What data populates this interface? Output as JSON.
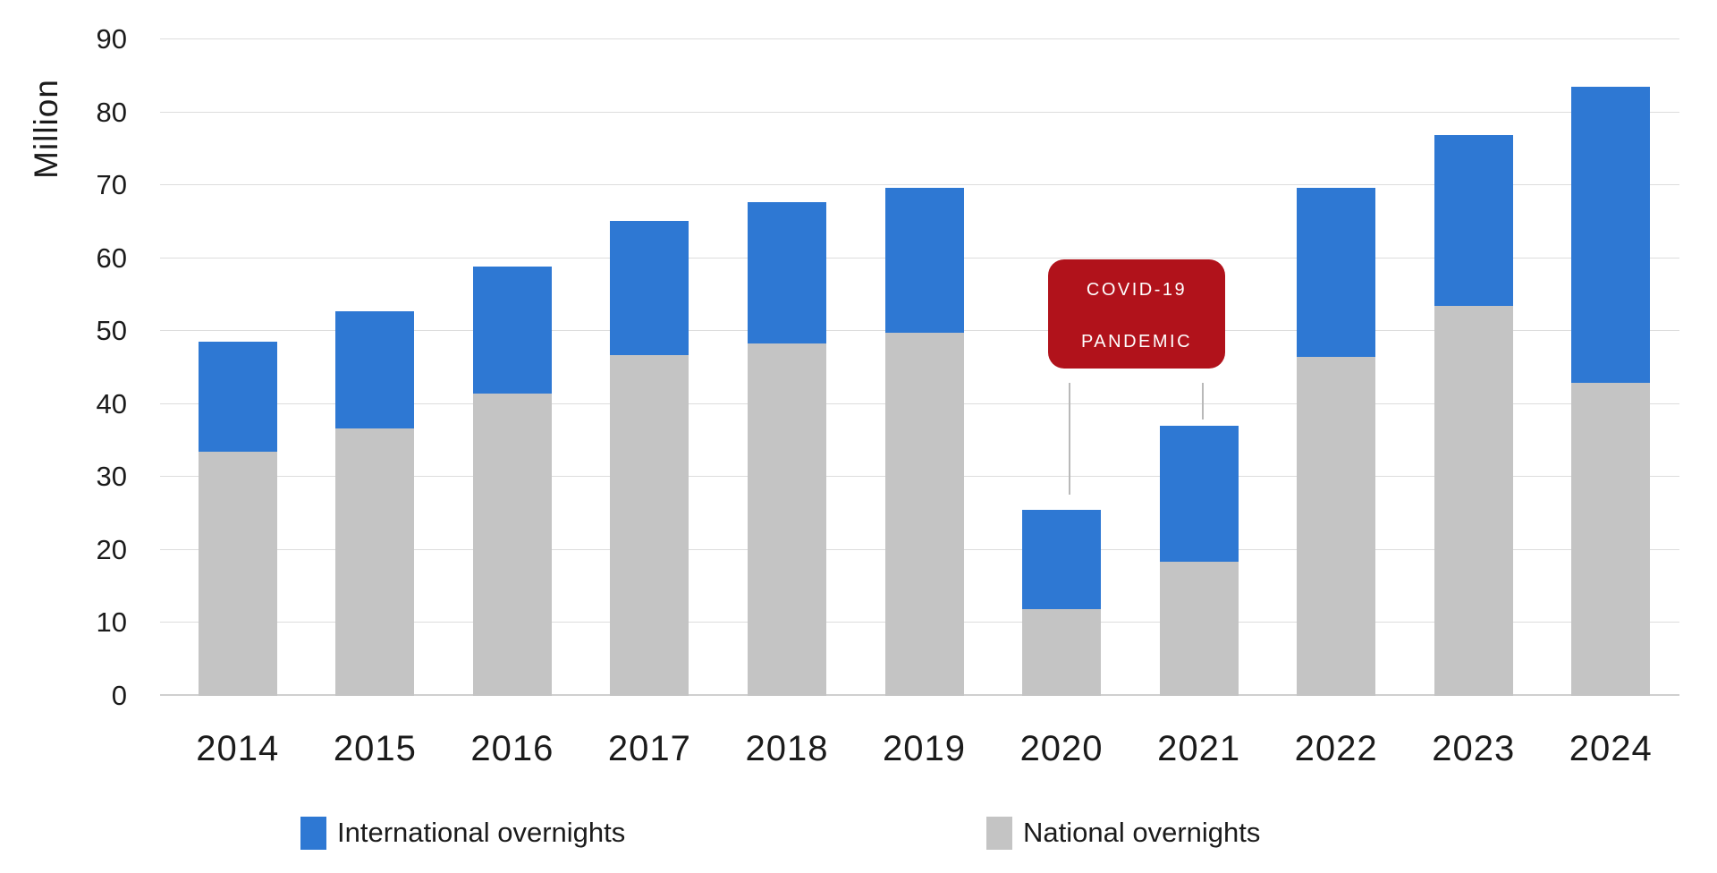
{
  "chart_data": {
    "type": "bar",
    "stacked": true,
    "title": "",
    "ylabel": "Million",
    "xlabel": "",
    "ylim": [
      0,
      90
    ],
    "y_ticks": [
      0,
      10,
      20,
      30,
      40,
      50,
      60,
      70,
      80,
      90
    ],
    "grid": true,
    "legend_position": "bottom",
    "categories": [
      "2014",
      "2015",
      "2016",
      "2017",
      "2018",
      "2019",
      "2020",
      "2021",
      "2022",
      "2023",
      "2024"
    ],
    "series": [
      {
        "name": "International overnights",
        "color": "#2e78d3",
        "values": [
          15.0,
          16.0,
          17.4,
          18.4,
          19.4,
          19.9,
          13.6,
          18.6,
          23.1,
          23.4,
          40.6
        ]
      },
      {
        "name": "National overnights",
        "color": "#c4c4c4",
        "values": [
          33.5,
          36.7,
          41.5,
          46.7,
          48.3,
          49.8,
          11.9,
          18.4,
          46.5,
          53.5,
          42.9
        ]
      }
    ],
    "totals": [
      48.5,
      52.7,
      58.9,
      65.1,
      67.7,
      69.7,
      25.5,
      37.0,
      69.6,
      76.9,
      83.5
    ],
    "annotation": {
      "lines": [
        "COVID-19",
        "PANDEMIC"
      ],
      "box_color": "#b1121b",
      "text_color": "#ffffff",
      "targets": [
        "2020",
        "2021"
      ]
    }
  }
}
